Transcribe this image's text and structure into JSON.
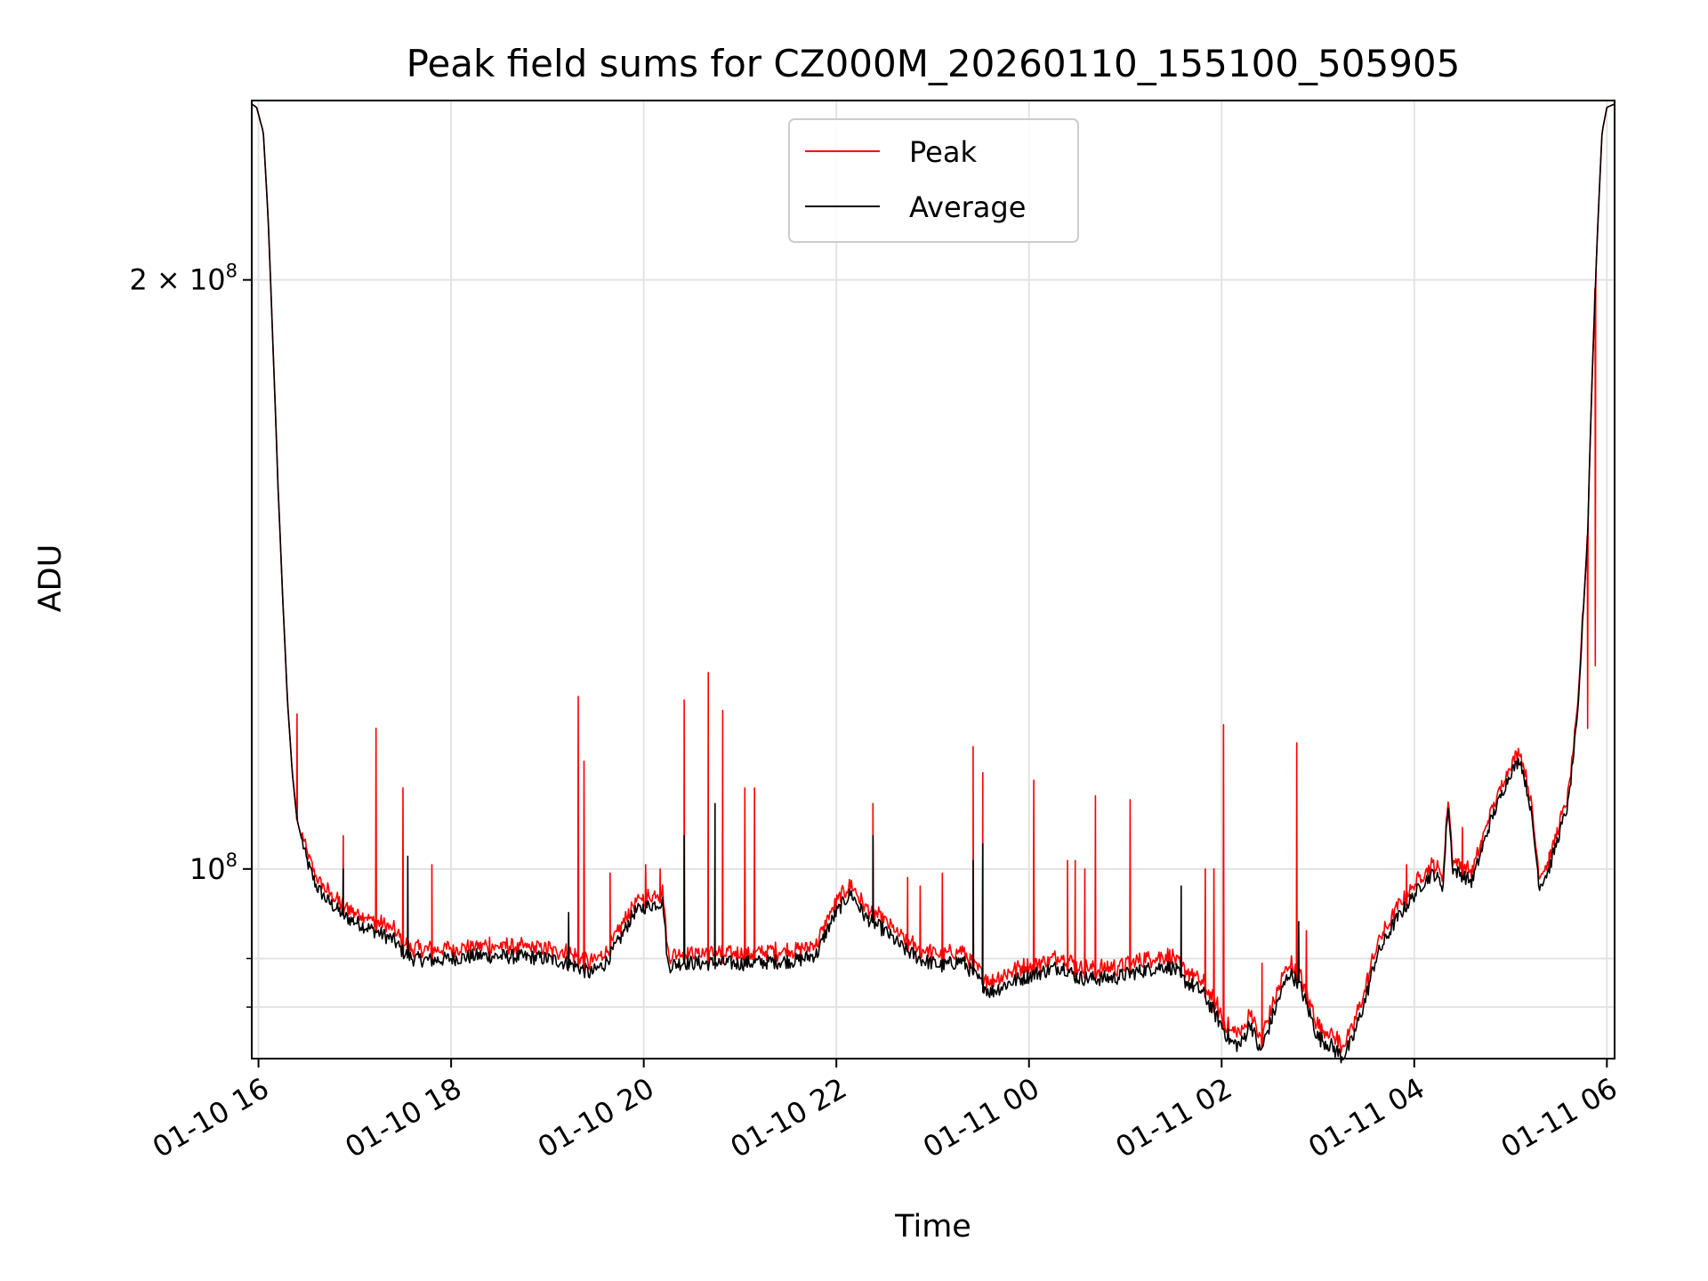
{
  "chart_data": {
    "type": "line",
    "scale_y": "log",
    "title": "Peak field sums for CZ000M_20260110_155100_505905",
    "xlabel": "Time",
    "ylabel": "ADU",
    "xlim": [
      15.93,
      30.08
    ],
    "ylim": [
      80000000,
      247000000
    ],
    "grid": true,
    "legend_position": "upper center",
    "x_ticks": [
      {
        "value": 16,
        "label": "01-10 16"
      },
      {
        "value": 18,
        "label": "01-10 18"
      },
      {
        "value": 20,
        "label": "01-10 20"
      },
      {
        "value": 22,
        "label": "01-10 22"
      },
      {
        "value": 24,
        "label": "01-11 00"
      },
      {
        "value": 26,
        "label": "01-11 02"
      },
      {
        "value": 28,
        "label": "01-11 04"
      },
      {
        "value": 30,
        "label": "01-11 06"
      }
    ],
    "y_ticks_major": [
      {
        "value": 100000000,
        "base": "10",
        "exp": "8",
        "coef": ""
      },
      {
        "value": 200000000,
        "base": "10",
        "exp": "8",
        "coef": "2 × "
      }
    ],
    "y_ticks_minor": [
      85000000,
      90000000
    ],
    "series": [
      {
        "name": "Peak",
        "color": "#ff0000",
        "role": "peak"
      },
      {
        "name": "Average",
        "color": "#000000",
        "role": "average"
      }
    ],
    "average_profile": [
      [
        15.93,
        246
      ],
      [
        15.98,
        245
      ],
      [
        16.05,
        238
      ],
      [
        16.1,
        215
      ],
      [
        16.15,
        185
      ],
      [
        16.2,
        158
      ],
      [
        16.25,
        138
      ],
      [
        16.3,
        122
      ],
      [
        16.35,
        112
      ],
      [
        16.4,
        106
      ],
      [
        16.5,
        101
      ],
      [
        16.6,
        98
      ],
      [
        16.7,
        96.5
      ],
      [
        16.8,
        95.5
      ],
      [
        16.9,
        94.5
      ],
      [
        17.0,
        94
      ],
      [
        17.2,
        93
      ],
      [
        17.4,
        92
      ],
      [
        17.5,
        90.7
      ],
      [
        17.6,
        90
      ],
      [
        17.8,
        89.8
      ],
      [
        18.0,
        90
      ],
      [
        18.3,
        90.3
      ],
      [
        18.6,
        90.2
      ],
      [
        18.9,
        90.1
      ],
      [
        19.1,
        89.8
      ],
      [
        19.3,
        89.2
      ],
      [
        19.45,
        88.4
      ],
      [
        19.6,
        89.5
      ],
      [
        19.75,
        92
      ],
      [
        19.9,
        95
      ],
      [
        20.0,
        95.6
      ],
      [
        20.2,
        96.2
      ],
      [
        20.25,
        89.2
      ],
      [
        20.4,
        89.6
      ],
      [
        20.6,
        89.5
      ],
      [
        20.8,
        89.5
      ],
      [
        21.0,
        89.5
      ],
      [
        21.2,
        89.6
      ],
      [
        21.4,
        89.7
      ],
      [
        21.6,
        89.8
      ],
      [
        21.8,
        90.5
      ],
      [
        21.9,
        93
      ],
      [
        22.0,
        95
      ],
      [
        22.1,
        96.5
      ],
      [
        22.15,
        97.2
      ],
      [
        22.3,
        94.5
      ],
      [
        22.5,
        93
      ],
      [
        22.7,
        91
      ],
      [
        22.9,
        89.8
      ],
      [
        23.1,
        89.2
      ],
      [
        23.3,
        89.8
      ],
      [
        23.5,
        87.5
      ],
      [
        23.6,
        86.5
      ],
      [
        23.8,
        87.5
      ],
      [
        24.0,
        88.2
      ],
      [
        24.2,
        88.8
      ],
      [
        24.35,
        89.2
      ],
      [
        24.5,
        88
      ],
      [
        24.7,
        87.9
      ],
      [
        24.9,
        88
      ],
      [
        25.0,
        88.3
      ],
      [
        25.2,
        88.8
      ],
      [
        25.4,
        89.2
      ],
      [
        25.5,
        89
      ],
      [
        25.6,
        87.8
      ],
      [
        25.8,
        86.5
      ],
      [
        25.95,
        84
      ],
      [
        26.1,
        81.5
      ],
      [
        26.2,
        81.3
      ],
      [
        26.3,
        83.5
      ],
      [
        26.4,
        80.5
      ],
      [
        26.6,
        86
      ],
      [
        26.7,
        88.5
      ],
      [
        26.8,
        87.5
      ],
      [
        27.0,
        82
      ],
      [
        27.1,
        81.5
      ],
      [
        27.25,
        80.2
      ],
      [
        27.35,
        81.5
      ],
      [
        27.5,
        86
      ],
      [
        27.6,
        90
      ],
      [
        27.8,
        94
      ],
      [
        28.0,
        97
      ],
      [
        28.1,
        98.5
      ],
      [
        28.2,
        99.5
      ],
      [
        28.3,
        98
      ],
      [
        28.35,
        108
      ],
      [
        28.4,
        100
      ],
      [
        28.6,
        98.5
      ],
      [
        28.8,
        106
      ],
      [
        28.9,
        109
      ],
      [
        29.0,
        112
      ],
      [
        29.1,
        113.8
      ],
      [
        29.2,
        108
      ],
      [
        29.3,
        98
      ],
      [
        29.4,
        100
      ],
      [
        29.5,
        104
      ],
      [
        29.6,
        108
      ],
      [
        29.7,
        120
      ],
      [
        29.8,
        148
      ],
      [
        29.85,
        180
      ],
      [
        29.9,
        210
      ],
      [
        29.95,
        238
      ],
      [
        30.0,
        245
      ],
      [
        30.08,
        246
      ]
    ],
    "average_spikes": [
      [
        16.88,
        100
      ],
      [
        17.55,
        101.5
      ],
      [
        19.22,
        95
      ],
      [
        20.42,
        104
      ],
      [
        20.74,
        108
      ],
      [
        22.38,
        104
      ],
      [
        23.42,
        101
      ],
      [
        23.52,
        103
      ],
      [
        25.58,
        98
      ],
      [
        26.8,
        94
      ]
    ],
    "peak_spikes": [
      [
        16.4,
        120
      ],
      [
        16.88,
        104
      ],
      [
        17.22,
        118
      ],
      [
        17.5,
        110
      ],
      [
        17.8,
        100.5
      ],
      [
        18.2,
        91.5
      ],
      [
        18.4,
        92.3
      ],
      [
        19.32,
        122.5
      ],
      [
        19.38,
        113.5
      ],
      [
        19.65,
        99.5
      ],
      [
        20.02,
        100.5
      ],
      [
        20.17,
        100
      ],
      [
        20.42,
        122
      ],
      [
        20.67,
        126
      ],
      [
        20.82,
        120.5
      ],
      [
        21.05,
        110
      ],
      [
        21.15,
        110
      ],
      [
        22.38,
        108
      ],
      [
        22.74,
        99
      ],
      [
        22.87,
        98
      ],
      [
        23.1,
        99.5
      ],
      [
        23.42,
        115.5
      ],
      [
        23.52,
        112
      ],
      [
        24.05,
        111
      ],
      [
        24.4,
        101
      ],
      [
        24.48,
        101
      ],
      [
        24.58,
        100
      ],
      [
        24.69,
        109
      ],
      [
        25.05,
        108.5
      ],
      [
        25.83,
        100
      ],
      [
        25.92,
        100
      ],
      [
        26.02,
        118.5
      ],
      [
        26.42,
        89.5
      ],
      [
        26.78,
        116
      ],
      [
        26.88,
        93
      ],
      [
        27.92,
        100.5
      ],
      [
        28.5,
        105
      ],
      [
        28.7,
        102
      ],
      [
        29.4,
        102
      ],
      [
        29.8,
        118
      ],
      [
        29.88,
        127
      ]
    ],
    "annotations_note": "dense time series; average and peak traces mostly overlap, peak (red) shows many narrow upward spikes"
  }
}
